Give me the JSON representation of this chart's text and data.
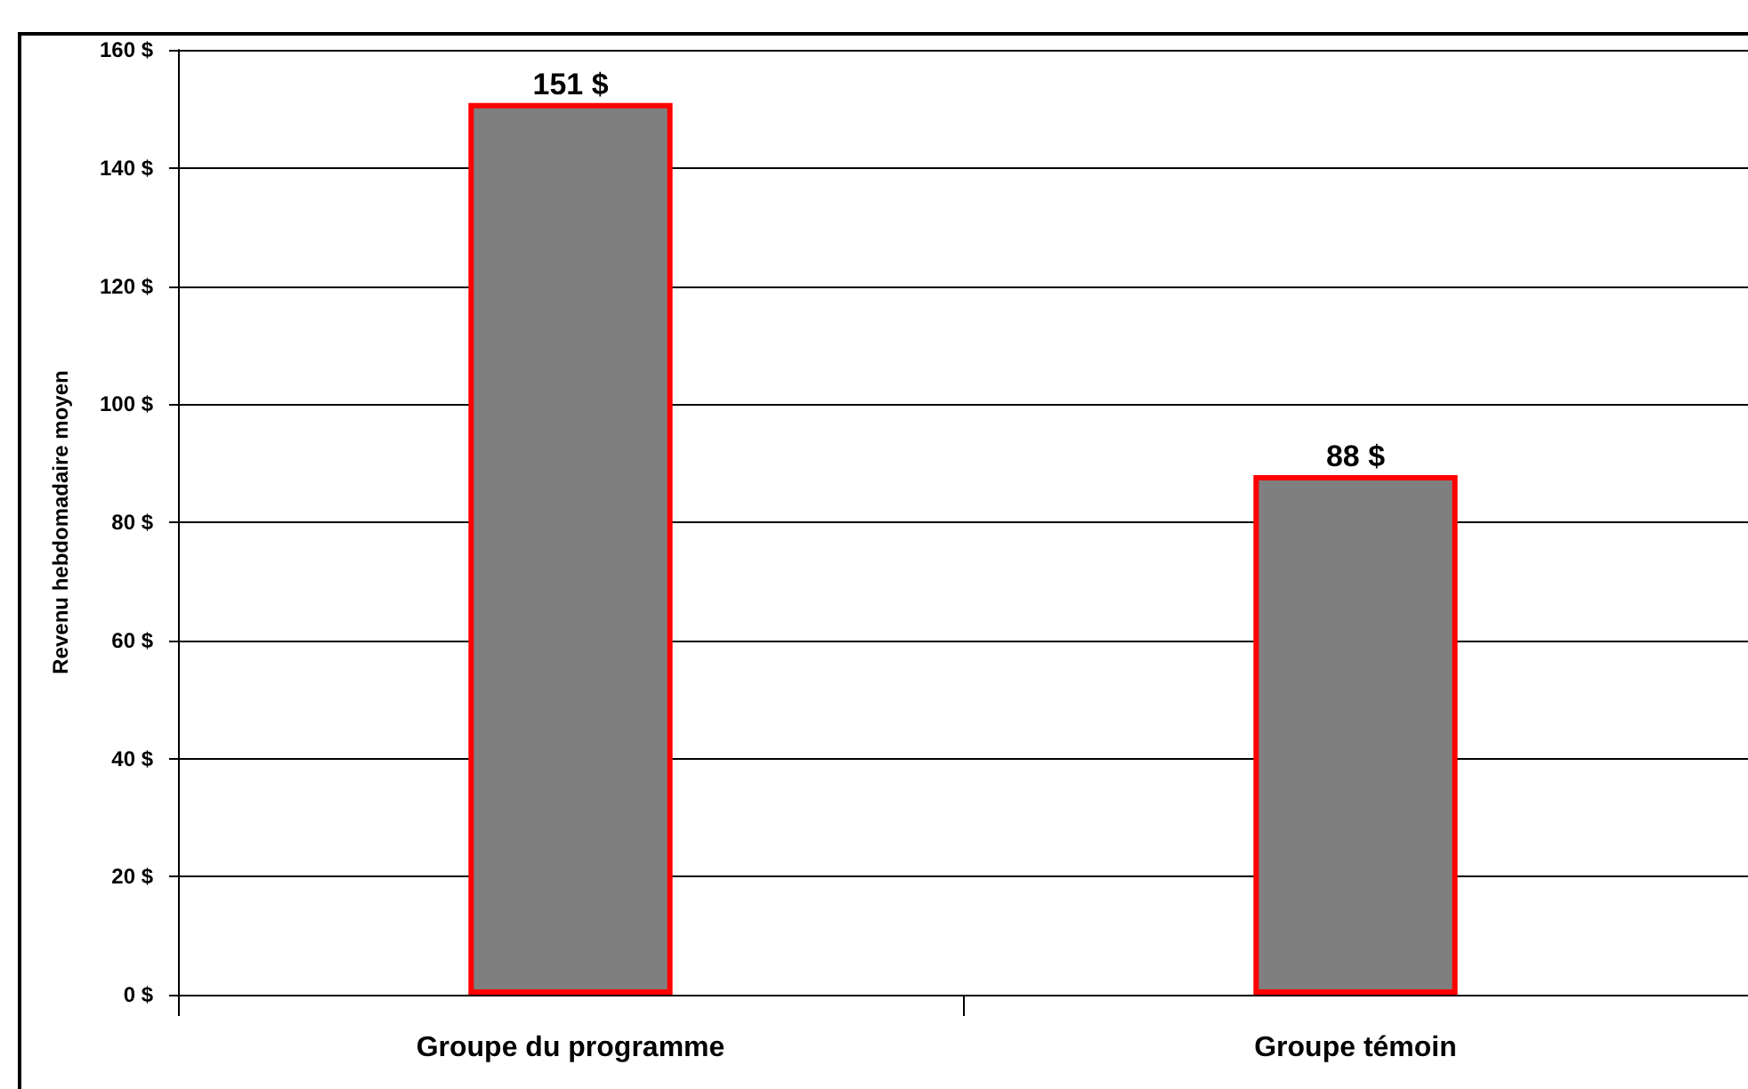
{
  "chart_data": {
    "type": "bar",
    "ylabel": "Revenu hebdomadaire moyen",
    "categories": [
      "Groupe du programme",
      "Groupe témoin"
    ],
    "values": [
      151,
      88
    ],
    "value_labels": [
      "151 $",
      "88 $"
    ],
    "color": "#7f7f7f",
    "ylim": [
      0,
      160
    ],
    "yticks": [
      {
        "value": 0,
        "label": "0 $"
      },
      {
        "value": 20,
        "label": "20 $"
      },
      {
        "value": 40,
        "label": "40 $"
      },
      {
        "value": 60,
        "label": "60 $"
      },
      {
        "value": 80,
        "label": "80 $"
      },
      {
        "value": 100,
        "label": "100 $"
      },
      {
        "value": 120,
        "label": "120 $"
      },
      {
        "value": 140,
        "label": "140 $"
      },
      {
        "value": 160,
        "label": "160 $"
      }
    ],
    "grid": "y"
  }
}
